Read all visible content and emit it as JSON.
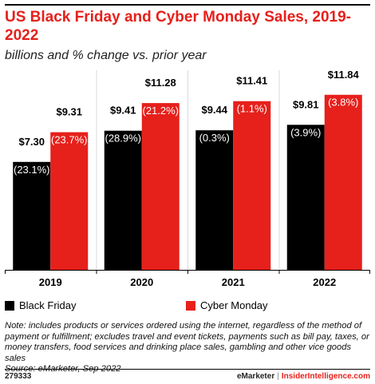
{
  "header": {
    "title": "US Black Friday and Cyber Monday Sales, 2019-2022",
    "subtitle": "billions and % change vs. prior year"
  },
  "chart_data": {
    "type": "bar",
    "categories": [
      "2019",
      "2020",
      "2021",
      "2022"
    ],
    "ylim": [
      0,
      13.5
    ],
    "grid": false,
    "legend_position": "bottom-left",
    "series": [
      {
        "name": "Black Friday",
        "color": "#000000",
        "values": [
          7.3,
          9.41,
          9.44,
          9.81
        ],
        "value_labels": [
          "$7.30",
          "$9.41",
          "$9.44",
          "$9.81"
        ],
        "change_labels": [
          "(23.1%)",
          "(28.9%)",
          "(0.3%)",
          "(3.9%)"
        ]
      },
      {
        "name": "Cyber Monday",
        "color": "#e6201b",
        "values": [
          9.31,
          11.28,
          11.41,
          11.84
        ],
        "value_labels": [
          "$9.31",
          "$11.28",
          "$11.41",
          "$11.84"
        ],
        "change_labels": [
          "(23.7%)",
          "(21.2%)",
          "(1.1%)",
          "(3.8%)"
        ]
      }
    ]
  },
  "note": {
    "line1": "Note: includes products or services ordered using the internet, regardless of the method of",
    "line2": "payment or fulfillment; excludes travel and event tickets, payments such as bill pay, taxes, or",
    "line3": "money transfers, food services and drinking place sales, gambling and other vice goods sales",
    "line4": "Source: eMarketer, Sep 2022"
  },
  "footer": {
    "id": "279333",
    "brand1": "eMarketer",
    "separator": "|",
    "brand2": "InsiderIntelligence.com"
  }
}
